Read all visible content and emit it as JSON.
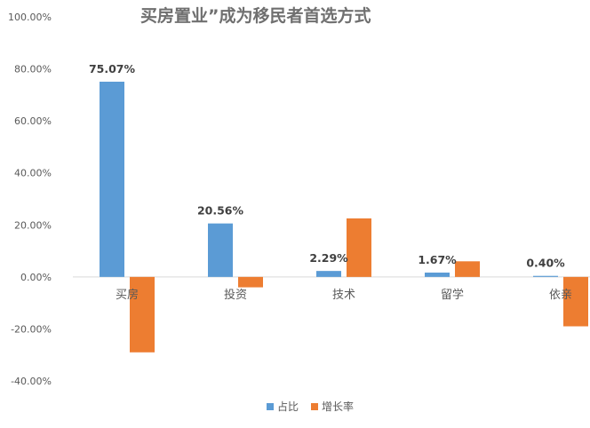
{
  "chart_data": {
    "type": "bar",
    "title": "买房置业”成为移民者首选方式",
    "categories": [
      "买房",
      "投资",
      "技术",
      "留学",
      "依亲"
    ],
    "series": [
      {
        "name": "占比",
        "color": "#5B9BD5",
        "values": [
          75.07,
          20.56,
          2.29,
          1.67,
          0.4
        ]
      },
      {
        "name": "增长率",
        "color": "#ED7D31",
        "values": [
          -29.0,
          -4.0,
          22.5,
          6.0,
          -19.0
        ]
      }
    ],
    "data_labels": [
      "75.07%",
      "20.56%",
      "2.29%",
      "1.67%",
      "0.40%"
    ],
    "y_ticks": [
      100,
      80,
      60,
      40,
      20,
      0,
      -20,
      -40
    ],
    "y_tick_labels": [
      "100.00%",
      "80.00%",
      "60.00%",
      "40.00%",
      "20.00%",
      "0.00%",
      "-20.00%",
      "-40.00%"
    ],
    "ylim": [
      -40,
      100
    ],
    "legend_position": "bottom",
    "grid": false
  }
}
